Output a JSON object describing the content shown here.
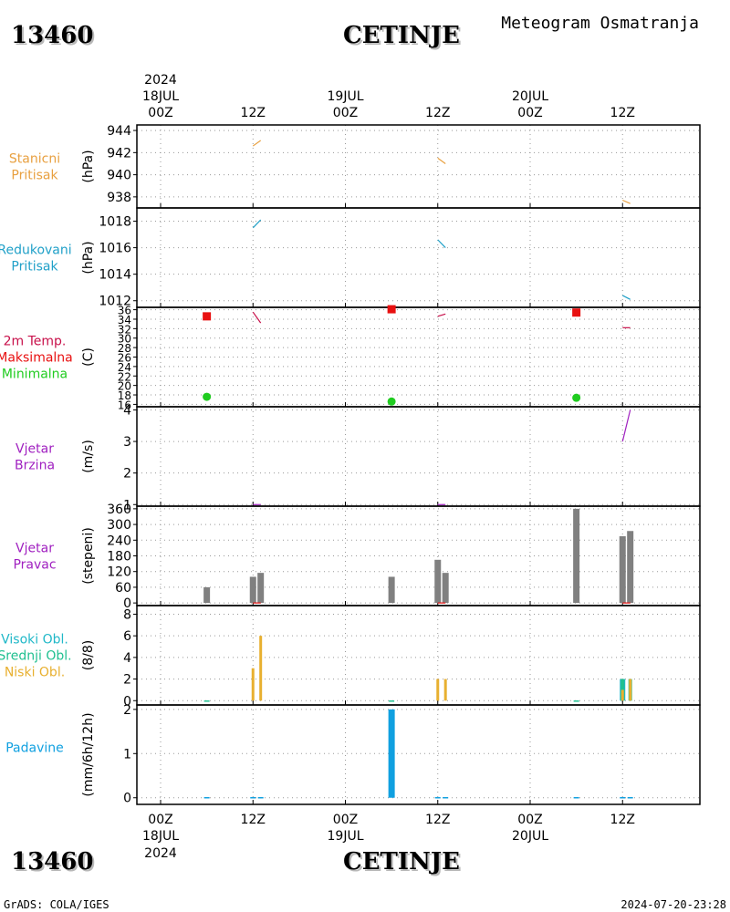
{
  "header": {
    "station_id": "13460",
    "station_name": "CETINJE",
    "product": "Meteogram Osmatranja"
  },
  "footer": {
    "credit": "GrADS: COLA/IGES",
    "timestamp": "2024-07-20-23:28"
  },
  "time_axis": {
    "year": "2024",
    "ticks": [
      {
        "hour": 0,
        "label": "00Z",
        "date": "18JUL"
      },
      {
        "hour": 12,
        "label": "12Z",
        "date": ""
      },
      {
        "hour": 24,
        "label": "00Z",
        "date": "19JUL"
      },
      {
        "hour": 36,
        "label": "12Z",
        "date": ""
      },
      {
        "hour": 48,
        "label": "00Z",
        "date": "20JUL"
      },
      {
        "hour": 60,
        "label": "12Z",
        "date": ""
      }
    ]
  },
  "colors": {
    "pressure_station": "#e8a040",
    "pressure_reduced": "#20a0c8",
    "temperature": "#c8104a",
    "max_temp": "#e81010",
    "min_temp": "#20cc20",
    "wind_speed": "#a020c0",
    "wind_dir_bar": "#808080",
    "wind_dir_line": "#e81010",
    "high_cloud": "#20b8c8",
    "mid_cloud": "#20c090",
    "low_cloud": "#e8b030",
    "precip": "#10a0e0"
  },
  "chart_data": [
    {
      "type": "line",
      "id": "stanicni",
      "labels": [
        "Stanicni",
        "Pritisak"
      ],
      "label_color": "#e8a040",
      "ylabel": "(hPa)",
      "ylim": [
        937,
        944.5
      ],
      "yticks": [
        944,
        942,
        940,
        938
      ],
      "series": [
        {
          "x": [
            12,
            13
          ],
          "y": [
            942.6,
            943.1
          ]
        },
        {
          "x": [
            36,
            37
          ],
          "y": [
            941.5,
            941.0
          ]
        },
        {
          "x": [
            60,
            61
          ],
          "y": [
            937.7,
            937.4
          ]
        }
      ]
    },
    {
      "type": "line",
      "id": "redukovani",
      "labels": [
        "Redukovani",
        "Pritisak"
      ],
      "label_color": "#20a0c8",
      "ylabel": "(hPa)",
      "ylim": [
        1011.5,
        1019
      ],
      "yticks": [
        1018,
        1016,
        1014,
        1012
      ],
      "series": [
        {
          "x": [
            12,
            13
          ],
          "y": [
            1017.5,
            1018.1
          ]
        },
        {
          "x": [
            36,
            37
          ],
          "y": [
            1016.6,
            1016.0
          ]
        },
        {
          "x": [
            60,
            61
          ],
          "y": [
            1012.4,
            1012.1
          ]
        }
      ]
    },
    {
      "type": "scatter",
      "id": "temperatura",
      "labels": [
        "2m Temp.",
        "Maksimalna",
        "Minimalna"
      ],
      "label_colors": [
        "#c8104a",
        "#e81010",
        "#20cc20"
      ],
      "ylabel": "(C)",
      "ylim": [
        15.5,
        36.5
      ],
      "yticks": [
        36,
        34,
        32,
        30,
        28,
        26,
        24,
        22,
        20,
        18,
        16
      ],
      "temp_lines": [
        {
          "x": [
            12,
            13
          ],
          "y": [
            35.5,
            33.2
          ]
        },
        {
          "x": [
            36,
            37
          ],
          "y": [
            34.6,
            35.1
          ]
        },
        {
          "x": [
            60,
            61
          ],
          "y": [
            32.2,
            32.2
          ]
        }
      ],
      "max_points": [
        {
          "x": 6,
          "y": 34.6
        },
        {
          "x": 30,
          "y": 36.1
        },
        {
          "x": 54,
          "y": 35.4
        }
      ],
      "min_points": [
        {
          "x": 6,
          "y": 17.6
        },
        {
          "x": 30,
          "y": 16.6
        },
        {
          "x": 54,
          "y": 17.4
        }
      ]
    },
    {
      "type": "line",
      "id": "vjetar_brzina",
      "labels": [
        "Vjetar",
        "Brzina"
      ],
      "label_color": "#a020c0",
      "ylabel": "(m/s)",
      "ylim": [
        0.95,
        4.1
      ],
      "yticks": [
        4,
        3,
        2,
        1
      ],
      "series": [
        {
          "x": [
            12,
            13
          ],
          "y": [
            1,
            1
          ]
        },
        {
          "x": [
            36,
            37
          ],
          "y": [
            1,
            1
          ]
        },
        {
          "x": [
            60,
            61
          ],
          "y": [
            3,
            4
          ]
        }
      ]
    },
    {
      "type": "bar",
      "id": "vjetar_pravac",
      "labels": [
        "Vjetar",
        "Pravac"
      ],
      "label_color": "#a020c0",
      "ylabel": "(stepeni)",
      "ylim": [
        -10,
        370
      ],
      "yticks": [
        360,
        300,
        240,
        180,
        120,
        60,
        0
      ],
      "bars": [
        {
          "x": 6,
          "value": 60
        },
        {
          "x": 12,
          "value": 100
        },
        {
          "x": 13,
          "value": 115
        },
        {
          "x": 30,
          "value": 100
        },
        {
          "x": 36,
          "value": 165
        },
        {
          "x": 37,
          "value": 115
        },
        {
          "x": 54,
          "value": 360
        },
        {
          "x": 60,
          "value": 255
        },
        {
          "x": 61,
          "value": 275
        }
      ]
    },
    {
      "type": "bar",
      "id": "oblacnost",
      "labels": [
        "Visoki Obl.",
        "Srednji Obl.",
        "Niski Obl."
      ],
      "label_colors": [
        "#20b8c8",
        "#20c090",
        "#e8b030"
      ],
      "ylabel": "(8/8)",
      "ylim": [
        -0.4,
        8.8
      ],
      "yticks": [
        8,
        6,
        4,
        2,
        0
      ],
      "low": [
        {
          "x": 12,
          "value": 3
        },
        {
          "x": 13,
          "value": 6
        },
        {
          "x": 36,
          "value": 2
        },
        {
          "x": 37,
          "value": 2
        },
        {
          "x": 60,
          "value": 1
        },
        {
          "x": 61,
          "value": 2
        }
      ],
      "mid": [
        {
          "x": 60,
          "value": 2
        },
        {
          "x": 61,
          "value": 2
        }
      ],
      "high": [
        {
          "x": 60,
          "value": 2
        }
      ]
    },
    {
      "type": "bar",
      "id": "padavine",
      "labels": [
        "Padavine"
      ],
      "label_color": "#10a0e0",
      "ylabel": "(mm/6h/12h)",
      "ylim": [
        -0.15,
        2.1
      ],
      "yticks": [
        2,
        1,
        0
      ],
      "bars": [
        {
          "x": 30,
          "value": 2
        }
      ],
      "traces": [
        6,
        12,
        13,
        36,
        37,
        54,
        60,
        61
      ]
    }
  ]
}
